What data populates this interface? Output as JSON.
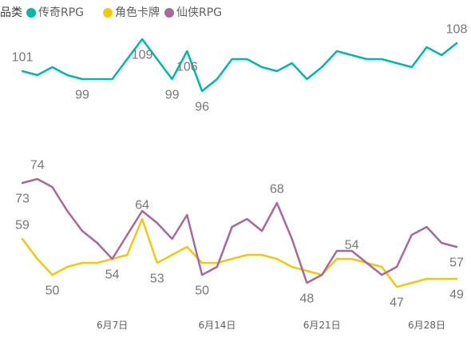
{
  "chart_data": {
    "type": "line",
    "legend": {
      "title": "品类",
      "position": "top-left"
    },
    "x": [
      "6月1日",
      "6月2日",
      "6月3日",
      "6月4日",
      "6月5日",
      "6月6日",
      "6月7日",
      "6月8日",
      "6月9日",
      "6月10日",
      "6月11日",
      "6月12日",
      "6月13日",
      "6月14日",
      "6月15日",
      "6月16日",
      "6月17日",
      "6月18日",
      "6月19日",
      "6月20日",
      "6月21日",
      "6月22日",
      "6月23日",
      "6月24日",
      "6月25日",
      "6月26日",
      "6月27日",
      "6月28日",
      "6月29日",
      "6月30日"
    ],
    "x_ticks": [
      "6月7日",
      "6月14日",
      "6月21日",
      "6月28日"
    ],
    "ylim": [
      40,
      115
    ],
    "grid": false,
    "series": [
      {
        "name": "传奇RPG",
        "color": "#01B8AA",
        "values": [
          101,
          100,
          102,
          100,
          99,
          99,
          99,
          104,
          109,
          104,
          99,
          106,
          96,
          99,
          104,
          104,
          102,
          101,
          103,
          99,
          102,
          106,
          105,
          104,
          104,
          103,
          102,
          107,
          105,
          108
        ],
        "data_labels": [
          {
            "x": "6月1日",
            "position": "above"
          },
          {
            "x": "6月5日",
            "position": "below"
          },
          {
            "x": "6月9日",
            "position": "below"
          },
          {
            "x": "6月11日",
            "position": "below"
          },
          {
            "x": "6月12日",
            "position": "below"
          },
          {
            "x": "6月13日",
            "position": "below"
          },
          {
            "x": "6月30日",
            "position": "above"
          }
        ]
      },
      {
        "name": "角色卡牌",
        "color": "#F2C80F",
        "values": [
          59,
          54,
          50,
          52,
          53,
          53,
          54,
          55,
          64,
          53,
          55,
          57,
          53,
          53,
          54,
          55,
          55,
          54,
          52,
          51,
          50,
          54,
          54,
          53,
          52,
          47,
          48,
          49,
          49,
          49
        ],
        "data_labels": [
          {
            "x": "6月1日",
            "position": "above"
          },
          {
            "x": "6月3日",
            "position": "below"
          },
          {
            "x": "6月9日",
            "position": "above"
          },
          {
            "x": "6月10日",
            "position": "below"
          },
          {
            "x": "6月23日",
            "position": "above"
          },
          {
            "x": "6月26日",
            "position": "below"
          },
          {
            "x": "6月30日",
            "position": "below"
          }
        ]
      },
      {
        "name": "仙侠RPG",
        "color": "#A66999",
        "values": [
          73,
          74,
          72,
          66,
          61,
          58,
          54,
          60,
          66,
          63,
          59,
          65,
          50,
          52,
          62,
          64,
          61,
          68,
          59,
          48,
          50,
          56,
          56,
          53,
          50,
          52,
          60,
          62,
          58,
          57
        ],
        "data_labels": [
          {
            "x": "6月1日",
            "position": "below"
          },
          {
            "x": "6月2日",
            "position": "above"
          },
          {
            "x": "6月7日",
            "position": "below"
          },
          {
            "x": "6月13日",
            "position": "below"
          },
          {
            "x": "6月18日",
            "position": "above"
          },
          {
            "x": "6月20日",
            "position": "below"
          },
          {
            "x": "6月30日",
            "position": "below"
          }
        ]
      }
    ]
  }
}
